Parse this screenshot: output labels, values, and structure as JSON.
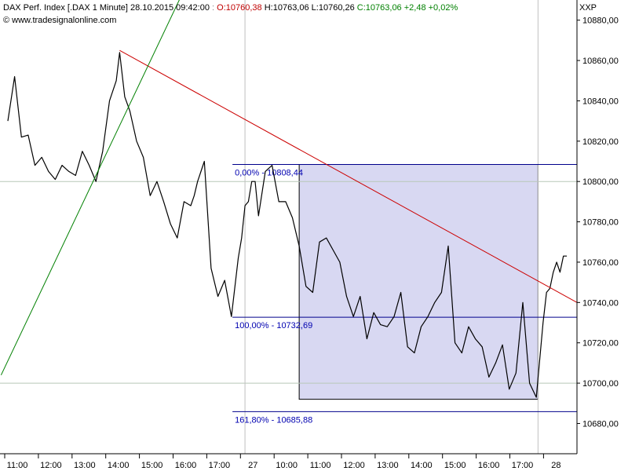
{
  "header": {
    "instrument": "DAX Perf. Index [.DAX  1 Minute]",
    "datetime": "28.10.2015 09:42:00",
    "open": "O:10760,38",
    "high": "H:10763,06",
    "low": "L:10760,26",
    "close": "C:10763,06 +2,48 +0,02%",
    "source": "© www.tradesignalonline.com",
    "symbol": "XXP"
  },
  "chart_data": {
    "type": "line",
    "title": "DAX Perf. Index [.DAX  1 Minute]",
    "ylim": [
      10665,
      10890
    ],
    "y_ticks": [
      "10880,00",
      "10860,00",
      "10840,00",
      "10820,00",
      "10800,00",
      "10780,00",
      "10760,00",
      "10740,00",
      "10720,00",
      "10700,00",
      "10680,00"
    ],
    "x_ticks": [
      "11:00",
      "12:00",
      "13:00",
      "14:00",
      "15:00",
      "16:00",
      "17:00",
      "27",
      "10:00",
      "11:00",
      "12:00",
      "13:00",
      "14:00",
      "15:00",
      "16:00",
      "17:00",
      "28"
    ],
    "series": [
      {
        "color": "#000000",
        "x": [
          0,
          0.2,
          0.4,
          0.6,
          0.8,
          1.0,
          1.2,
          1.4,
          1.6,
          1.8,
          2.0,
          2.2,
          2.4,
          2.6,
          2.8,
          3.0,
          3.2,
          3.3,
          3.45,
          3.6,
          3.8,
          4.0,
          4.2,
          4.4,
          4.6,
          4.8,
          5.0,
          5.2,
          5.4,
          5.5,
          5.6,
          5.8,
          6.0,
          6.2,
          6.4,
          6.6,
          6.8,
          6.9,
          7.0,
          7.1,
          7.2,
          7.3,
          7.4,
          7.6,
          7.8,
          8.0,
          8.2,
          8.4,
          8.6,
          8.8,
          9.0,
          9.2,
          9.4,
          9.6,
          9.8,
          10.0,
          10.2,
          10.4,
          10.6,
          10.8,
          11.0,
          11.2,
          11.4,
          11.6,
          11.8,
          12.0,
          12.2,
          12.4,
          12.6,
          12.8,
          13.0,
          13.2,
          13.4,
          13.6,
          13.8,
          14.0,
          14.2,
          14.4,
          14.6,
          14.8,
          15.0,
          15.2,
          15.4,
          15.6,
          15.8,
          15.9,
          16.0,
          16.1,
          16.2,
          16.3,
          16.4,
          16.5
        ],
        "y": [
          10830,
          10852,
          10822,
          10823,
          10808,
          10812,
          10805,
          10801,
          10808,
          10805,
          10803,
          10815,
          10808,
          10800,
          10815,
          10840,
          10850,
          10864,
          10842,
          10835,
          10820,
          10812,
          10793,
          10800,
          10790,
          10779,
          10772,
          10790,
          10788,
          10793,
          10800,
          10810,
          10757,
          10743,
          10751,
          10733,
          10762,
          10772,
          10788,
          10790,
          10800,
          10800,
          10783,
          10805,
          10808,
          10790,
          10790,
          10782,
          10768,
          10748,
          10745,
          10770,
          10772,
          10766,
          10760,
          10743,
          10733,
          10743,
          10722,
          10735,
          10729,
          10728,
          10733,
          10745,
          10718,
          10715,
          10728,
          10733,
          10740,
          10745,
          10768,
          10720,
          10715,
          10728,
          10722,
          10718,
          10703,
          10710,
          10719,
          10697,
          10705,
          10740,
          10700,
          10693,
          10730,
          10745,
          10747,
          10755,
          10760,
          10755,
          10763,
          10763
        ]
      },
      {
        "color": "#cc0000",
        "name": "",
        "x": [
          3.3,
          16.8
        ],
        "y": [
          10865,
          10740
        ]
      },
      {
        "color": "#008000",
        "x": [
          -0.2,
          5.4
        ],
        "y": [
          10704,
          10902
        ]
      }
    ],
    "fibonacci": {
      "levels": [
        {
          "label": "0,00% - 10808,44",
          "value": 10808.44
        },
        {
          "label": "100,00% - 10732,69",
          "value": 10732.69
        },
        {
          "label": "161,80% - 10685,88",
          "value": 10685.88
        }
      ],
      "box": {
        "x_start": 8.6,
        "x_end": 15.65,
        "y_top": 10808.44,
        "y_bottom": 10692
      },
      "fill": "#d8d8f2",
      "line_color": "#00008b"
    },
    "vertical_gridlines": [
      7.0,
      15.65
    ],
    "horizontal_gridlines": [
      10800,
      10700
    ],
    "grid": true
  }
}
